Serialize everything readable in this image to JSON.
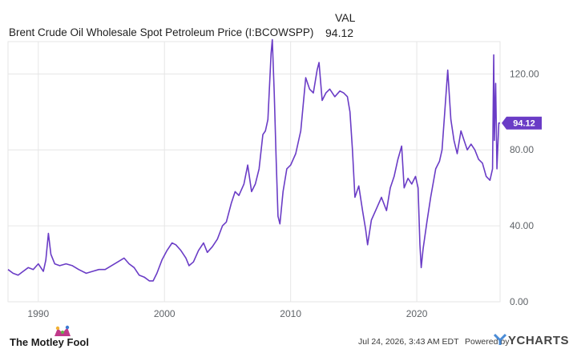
{
  "header": {
    "series_name": "Brent Crude Oil Wholesale Spot Petroleum Price (I:BCOWSPP)",
    "value_label": "VAL",
    "value": "94.12"
  },
  "colors": {
    "line": "#6a3cc6",
    "grid": "#e6e6e6",
    "badge": "#6a3cc6"
  },
  "footer": {
    "logo_text": "The Motley Fool",
    "timestamp": "Jul 24, 2026, 3:43 AM EDT",
    "powered_by": "Powered by",
    "provider": "YCHARTS"
  },
  "chart_data": {
    "type": "line",
    "title": "",
    "xlabel": "",
    "ylabel": "",
    "xlim": [
      1987.6,
      2026.6
    ],
    "ylim": [
      0,
      137
    ],
    "y_ticks": [
      0,
      40,
      80,
      120
    ],
    "y_tick_labels": [
      "0.00",
      "40.00",
      "80.00",
      "120.00"
    ],
    "x_ticks": [
      1990,
      2000,
      2010,
      2020
    ],
    "x_tick_labels": [
      "1990",
      "2000",
      "2010",
      "2020"
    ],
    "grid": true,
    "last_value_label": "94.12",
    "series": [
      {
        "x": [
          1987.6,
          1988.0,
          1988.4,
          1988.8,
          1989.2,
          1989.6,
          1990.0,
          1990.4,
          1990.6,
          1990.8,
          1991.0,
          1991.3,
          1991.7,
          1992.2,
          1992.7,
          1993.2,
          1993.8,
          1994.3,
          1994.8,
          1995.3,
          1995.8,
          1996.3,
          1996.8,
          1997.2,
          1997.6,
          1998.0,
          1998.4,
          1998.8,
          1999.1,
          1999.4,
          1999.8,
          2000.2,
          2000.6,
          2000.9,
          2001.3,
          2001.7,
          2001.95,
          2002.3,
          2002.7,
          2003.1,
          2003.4,
          2003.8,
          2004.2,
          2004.6,
          2004.9,
          2005.3,
          2005.6,
          2005.9,
          2006.3,
          2006.6,
          2006.9,
          2007.2,
          2007.5,
          2007.8,
          2008.0,
          2008.2,
          2008.45,
          2008.55,
          2008.7,
          2008.85,
          2009.0,
          2009.15,
          2009.4,
          2009.7,
          2010.0,
          2010.4,
          2010.8,
          2011.0,
          2011.2,
          2011.5,
          2011.8,
          2012.1,
          2012.25,
          2012.5,
          2012.8,
          2013.1,
          2013.5,
          2013.9,
          2014.2,
          2014.5,
          2014.7,
          2014.9,
          2015.1,
          2015.4,
          2015.7,
          2015.95,
          2016.1,
          2016.4,
          2016.8,
          2017.2,
          2017.6,
          2017.9,
          2018.2,
          2018.5,
          2018.8,
          2019.0,
          2019.3,
          2019.6,
          2019.9,
          2020.1,
          2020.25,
          2020.35,
          2020.5,
          2020.8,
          2021.1,
          2021.5,
          2021.8,
          2022.0,
          2022.25,
          2022.45,
          2022.7,
          2022.95,
          2023.2,
          2023.5,
          2023.75,
          2024.0,
          2024.3,
          2024.6,
          2024.9,
          2025.2,
          2025.5,
          2025.8,
          2026.0,
          2026.1,
          2026.15,
          2026.25,
          2026.35,
          2026.5,
          2026.6
        ],
        "values": [
          17,
          15,
          14,
          16,
          18,
          17,
          20,
          16,
          22,
          36,
          25,
          20,
          19,
          20,
          19,
          17,
          15,
          16,
          17,
          17,
          19,
          21,
          23,
          20,
          18,
          14,
          13,
          11,
          11,
          15,
          22,
          27,
          31,
          30,
          27,
          23,
          19,
          21,
          27,
          31,
          26,
          29,
          33,
          40,
          42,
          52,
          58,
          56,
          62,
          72,
          58,
          62,
          70,
          88,
          90,
          96,
          131,
          138,
          110,
          75,
          45,
          41,
          58,
          70,
          72,
          78,
          90,
          104,
          118,
          112,
          110,
          122,
          126,
          106,
          110,
          112,
          108,
          111,
          110,
          108,
          100,
          80,
          55,
          61,
          48,
          38,
          30,
          43,
          49,
          55,
          48,
          60,
          66,
          75,
          82,
          60,
          65,
          62,
          66,
          60,
          30,
          18,
          28,
          42,
          55,
          70,
          74,
          80,
          103,
          122,
          96,
          85,
          78,
          90,
          85,
          80,
          83,
          80,
          75,
          73,
          66,
          64,
          70,
          130,
          85,
          115,
          70,
          94.12,
          94.12
        ]
      }
    ]
  }
}
